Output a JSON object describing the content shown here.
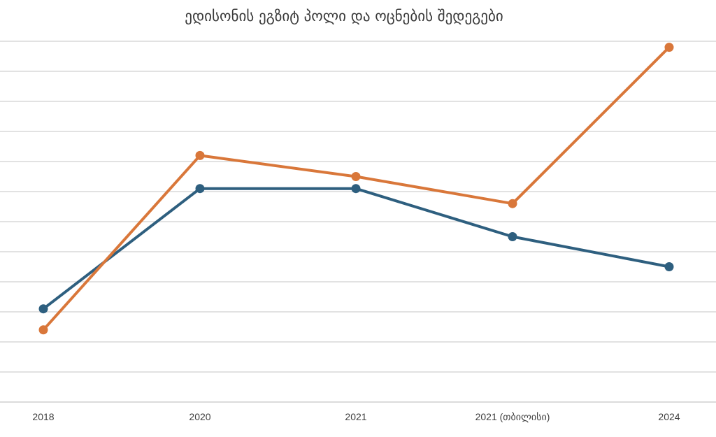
{
  "chart_data": {
    "type": "line",
    "title": "ედისონის ეგზიტ პოლი და ოცნების შედეგები",
    "xlabel": "",
    "ylabel": "",
    "categories": [
      "2018",
      "2020",
      "2021",
      "2021 (თბილისი)",
      "2024"
    ],
    "series": [
      {
        "color": "#2e5f7f",
        "values": [
          25.5,
          45.5,
          45.5,
          37.5,
          32.5
        ]
      },
      {
        "color": "#d9773a",
        "values": [
          22,
          51,
          47.5,
          43,
          69
        ]
      }
    ],
    "ylim": [
      10,
      70
    ],
    "grid": true,
    "legend": "none"
  }
}
